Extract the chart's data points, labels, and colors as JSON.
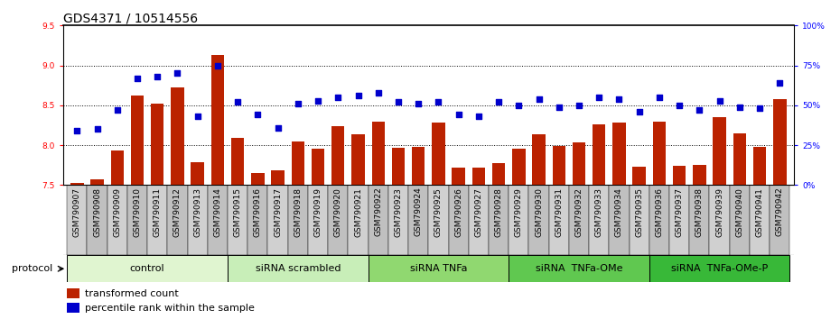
{
  "title": "GDS4371 / 10514556",
  "samples": [
    "GSM790907",
    "GSM790908",
    "GSM790909",
    "GSM790910",
    "GSM790911",
    "GSM790912",
    "GSM790913",
    "GSM790914",
    "GSM790915",
    "GSM790916",
    "GSM790917",
    "GSM790918",
    "GSM790919",
    "GSM790920",
    "GSM790921",
    "GSM790922",
    "GSM790923",
    "GSM790924",
    "GSM790925",
    "GSM790926",
    "GSM790927",
    "GSM790928",
    "GSM790929",
    "GSM790930",
    "GSM790931",
    "GSM790932",
    "GSM790933",
    "GSM790934",
    "GSM790935",
    "GSM790936",
    "GSM790937",
    "GSM790938",
    "GSM790939",
    "GSM790940",
    "GSM790941",
    "GSM790942"
  ],
  "bar_values": [
    7.53,
    7.57,
    7.93,
    8.62,
    8.52,
    8.72,
    7.79,
    9.13,
    8.09,
    7.65,
    7.68,
    8.05,
    7.96,
    8.24,
    8.14,
    8.29,
    7.97,
    7.98,
    8.28,
    7.72,
    7.72,
    7.77,
    7.96,
    8.14,
    7.99,
    8.04,
    8.26,
    8.28,
    7.73,
    8.3,
    7.74,
    7.75,
    8.35,
    8.15,
    7.98,
    8.58
  ],
  "dot_values": [
    34,
    35,
    47,
    67,
    68,
    70,
    43,
    75,
    52,
    44,
    36,
    51,
    53,
    55,
    56,
    58,
    52,
    51,
    52,
    44,
    43,
    52,
    50,
    54,
    49,
    50,
    55,
    54,
    46,
    55,
    50,
    47,
    53,
    49,
    48,
    64
  ],
  "ylim_left": [
    7.5,
    9.5
  ],
  "ylim_right": [
    0,
    100
  ],
  "yticks_left": [
    7.5,
    8.0,
    8.5,
    9.0,
    9.5
  ],
  "yticks_right": [
    0,
    25,
    50,
    75,
    100
  ],
  "ytick_labels_right": [
    "0%",
    "25%",
    "50%",
    "75%",
    "100%"
  ],
  "groups": [
    {
      "label": "control",
      "start": 0,
      "end": 8,
      "color": "#e0f5d0"
    },
    {
      "label": "siRNA scrambled",
      "start": 8,
      "end": 15,
      "color": "#c8eeb8"
    },
    {
      "label": "siRNA TNFa",
      "start": 15,
      "end": 22,
      "color": "#90d870"
    },
    {
      "label": "siRNA  TNFa-OMe",
      "start": 22,
      "end": 29,
      "color": "#60c850"
    },
    {
      "label": "siRNA  TNFa-OMe-P",
      "start": 29,
      "end": 36,
      "color": "#38b838"
    }
  ],
  "protocol_label": "protocol",
  "bar_color": "#bb2200",
  "dot_color": "#0000cc",
  "legend_labels": [
    "transformed count",
    "percentile rank within the sample"
  ],
  "legend_colors": [
    "#bb2200",
    "#0000cc"
  ],
  "title_fontsize": 10,
  "tick_fontsize": 6.5,
  "group_fontsize": 8,
  "gridline_y": [
    8.0,
    8.5,
    9.0
  ]
}
